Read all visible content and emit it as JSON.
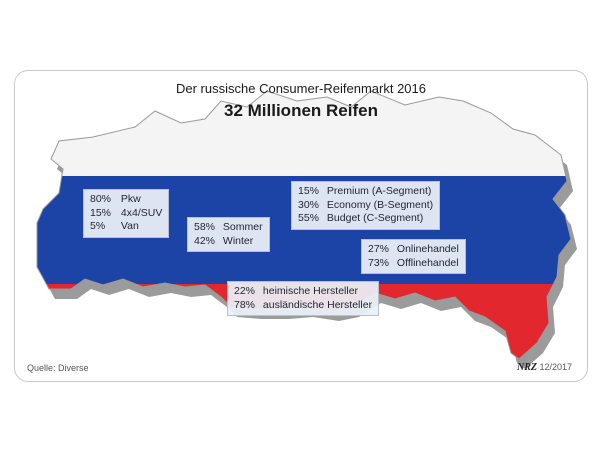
{
  "chart_data": {
    "type": "table",
    "title": "Der russische Consumer-Reifenmarkt 2016",
    "subtitle": "32 Millionen Reifen",
    "groups": [
      {
        "rows": [
          {
            "value": "80%",
            "label": "Pkw"
          },
          {
            "value": "15%",
            "label": "4x4/SUV"
          },
          {
            "value": "5%",
            "label": "Van"
          }
        ]
      },
      {
        "rows": [
          {
            "value": "58%",
            "label": "Sommer"
          },
          {
            "value": "42%",
            "label": "Winter"
          }
        ]
      },
      {
        "rows": [
          {
            "value": "15%",
            "label": "Premium (A-Segment)"
          },
          {
            "value": "30%",
            "label": "Economy (B-Segment)"
          },
          {
            "value": "55%",
            "label": "Budget (C-Segment)"
          }
        ]
      },
      {
        "rows": [
          {
            "value": "27%",
            "label": "Onlinehandel"
          },
          {
            "value": "73%",
            "label": "Offlinehandel"
          }
        ]
      },
      {
        "rows": [
          {
            "value": "22%",
            "label": "heimische Hersteller"
          },
          {
            "value": "78%",
            "label": "ausländische Hersteller"
          }
        ]
      }
    ]
  },
  "source": "Quelle: Diverse",
  "logo": {
    "brand": "NRZ",
    "date": "12/2017"
  },
  "colors": {
    "white": "#f4f4f4",
    "blue": "#1b44a6",
    "red": "#e3272e",
    "shadow": "#8a8a8a"
  }
}
